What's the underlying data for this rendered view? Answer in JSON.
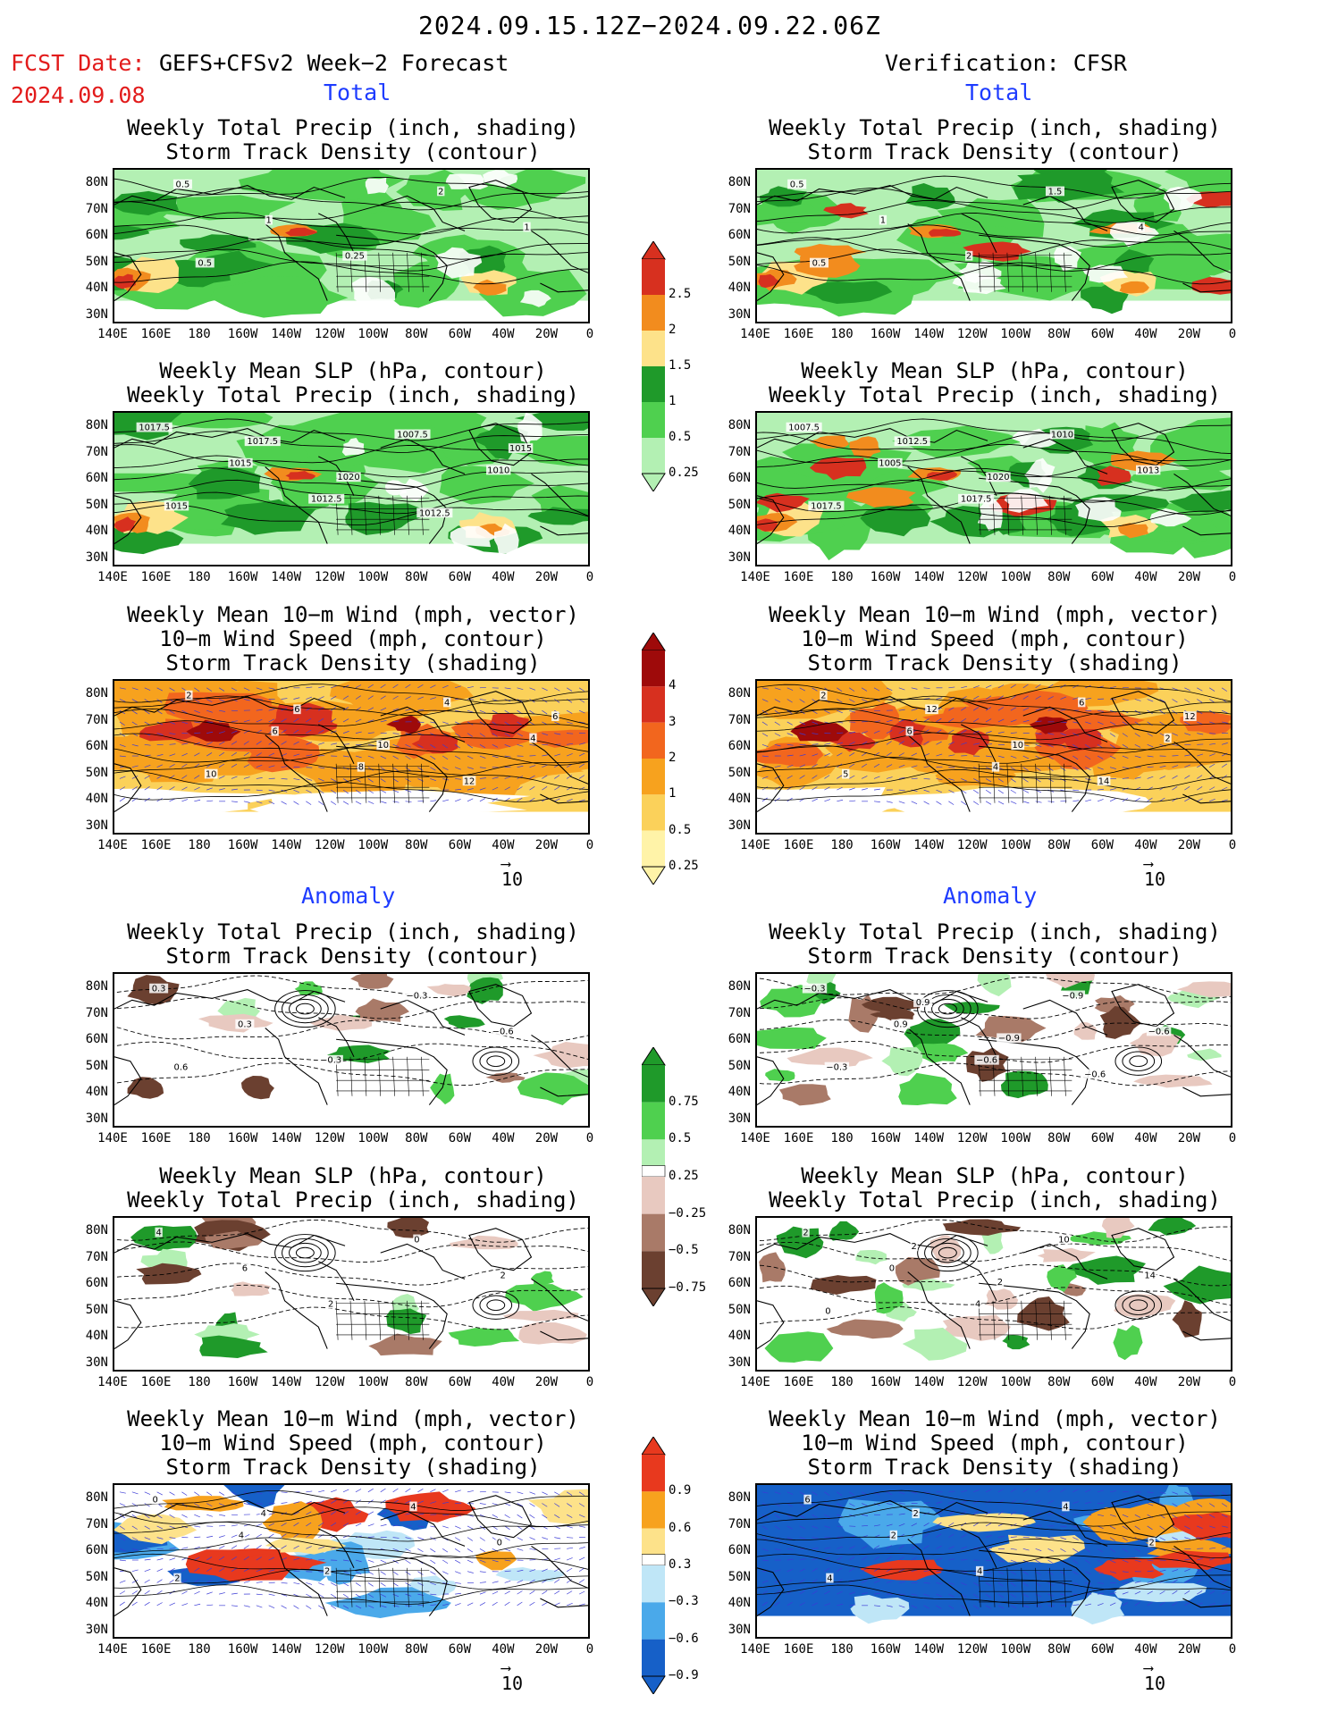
{
  "header": {
    "title": "2024.09.15.12Z−2024.09.22.06Z",
    "fcst_label": "FCST Date:",
    "fcst_date": "2024.09.08",
    "left_model": "GEFS+CFSv2 Week−2 Forecast",
    "right_model": "Verification: CFSR"
  },
  "sections": {
    "total": "Total",
    "anomaly": "Anomaly"
  },
  "panel_titles": {
    "precip_track": [
      "Weekly Total Precip (inch, shading)",
      "Storm Track Density (contour)"
    ],
    "slp_precip": [
      "Weekly Mean SLP (hPa, contour)",
      "Weekly Total Precip (inch, shading)"
    ],
    "wind_track": [
      "Weekly Mean 10−m Wind (mph, vector)",
      "10−m Wind Speed (mph, contour)",
      "Storm Track Density (shading)"
    ]
  },
  "axes": {
    "lon_labels": [
      "140E",
      "160E",
      "180",
      "160W",
      "140W",
      "120W",
      "100W",
      "80W",
      "60W",
      "40W",
      "20W",
      "0"
    ],
    "lat_labels": [
      "80N",
      "70N",
      "60N",
      "50N",
      "40N",
      "30N"
    ]
  },
  "colorbars": {
    "total_precip": {
      "labels": [
        "2.5",
        "2",
        "1.5",
        "1",
        "0.5",
        "0.25"
      ],
      "colors": [
        "#d7301f",
        "#f28c1e",
        "#fde28a",
        "#1f9a2a",
        "#4fd04f",
        "#b3f0b3"
      ]
    },
    "total_track": {
      "labels": [
        "4",
        "3",
        "2",
        "1",
        "0.5",
        "0.25"
      ],
      "colors": [
        "#9e0a0a",
        "#d7301f",
        "#f2661e",
        "#f7a21e",
        "#fbd15a",
        "#fff3a8"
      ]
    },
    "anom_precip": {
      "labels": [
        "0.75",
        "0.5",
        "0.25",
        "−0.25",
        "−0.5",
        "−0.75"
      ],
      "colors": [
        "#1f9a2a",
        "#4fd04f",
        "#b3f0b3",
        "#e8c9c0",
        "#a97a68",
        "#6b4030"
      ]
    },
    "anom_track": {
      "labels": [
        "0.9",
        "0.6",
        "0.3",
        "−0.3",
        "−0.6",
        "−0.9"
      ],
      "colors": [
        "#e8391e",
        "#f7a21e",
        "#fde28a",
        "#bfe6f7",
        "#4aa9ea",
        "#1660c8"
      ]
    }
  },
  "vector_ref": "10",
  "contour_labels": {
    "L1": [
      "0.5",
      "1",
      "0.25",
      "2",
      "1",
      "0.5"
    ],
    "R1": [
      "0.5",
      "1",
      "2",
      "1.5",
      "4",
      "0.5"
    ],
    "L2": [
      "1017.5",
      "1015",
      "1012.5",
      "1007.5",
      "1010",
      "1015",
      "1017.5",
      "1020",
      "1012.5",
      "1015"
    ],
    "R2": [
      "1007.5",
      "1005",
      "1017.5",
      "1010",
      "1013",
      "1017.5",
      "1012.5",
      "1020"
    ],
    "L3": [
      "2",
      "6",
      "8",
      "4",
      "4",
      "10",
      "6",
      "10",
      "12",
      "6"
    ],
    "R3": [
      "2",
      "6",
      "4",
      "6",
      "2",
      "5",
      "12",
      "10",
      "14",
      "12"
    ],
    "L4": [
      "0.3",
      "0.3",
      "−0.3",
      "−0.3",
      "−0.6",
      "0.6"
    ],
    "R4": [
      "−0.3",
      "0.9",
      "−0.6",
      "−0.9",
      "−0.6",
      "−0.3",
      "0.9",
      "−0.9",
      "−0.6"
    ],
    "L5": [
      "4",
      "6",
      "2",
      "0",
      "2"
    ],
    "R5": [
      "2",
      "0",
      "4",
      "10",
      "14",
      "0",
      "2",
      "2"
    ],
    "L6": [
      "0",
      "4",
      "2",
      "4",
      "0",
      "2",
      "4"
    ],
    "R6": [
      "6",
      "2",
      "4",
      "4",
      "2",
      "4",
      "2"
    ]
  }
}
